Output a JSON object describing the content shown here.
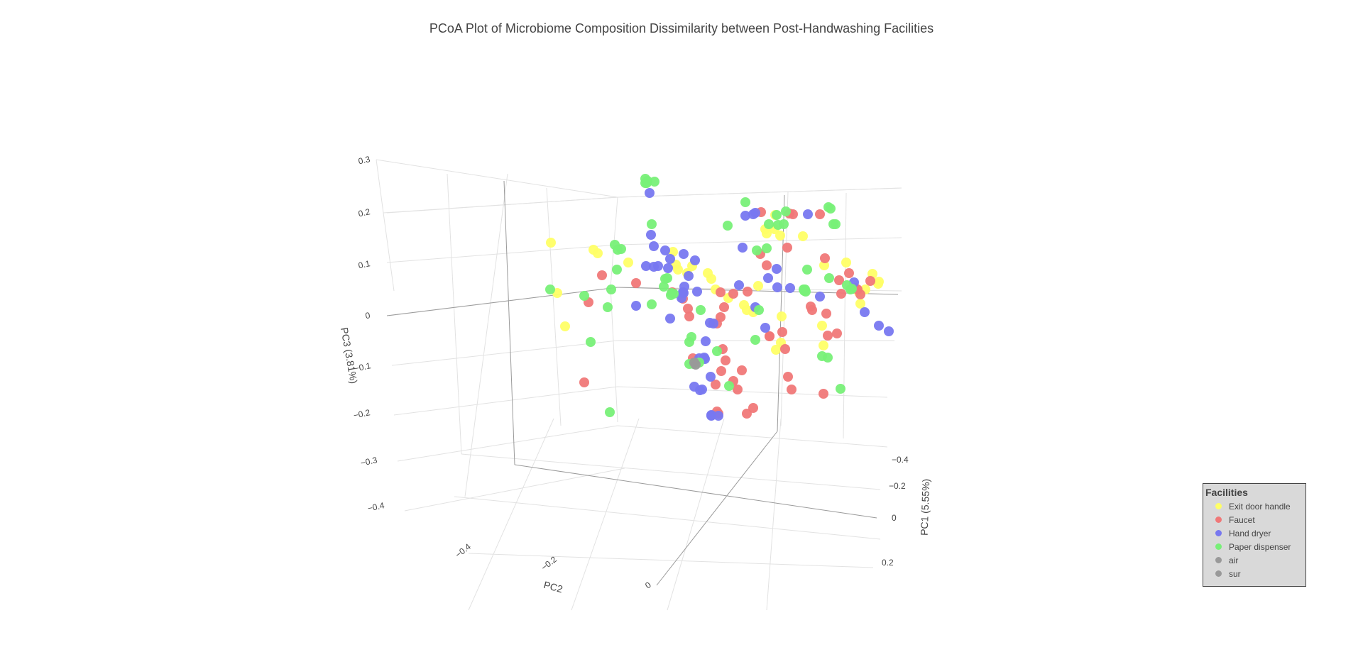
{
  "chart_data": {
    "type": "scatter",
    "title": "PCoA Plot of Microbiome Composition Dissimilarity between Post-Handwashing Facilities",
    "axes": {
      "x": {
        "label": "PC1 (5.55%)",
        "ticks": [
          "−0.4",
          "−0.2",
          "0",
          "0.2"
        ]
      },
      "y": {
        "label": "PC2",
        "ticks": [
          "−0.4",
          "−0.2",
          "0"
        ]
      },
      "z": {
        "label": "PC3 (3.81%)",
        "ticks": [
          "0.3",
          "0.2",
          "0.1",
          "0",
          "−0.1",
          "−0.2",
          "−0.3",
          "−0.4"
        ]
      }
    },
    "grid": true,
    "legend": {
      "title": "Facilities",
      "placement": "bottom-right",
      "entries": [
        {
          "name": "Exit door handle",
          "color": "#ffff66"
        },
        {
          "name": "Faucet",
          "color": "#f07878"
        },
        {
          "name": "Hand dryer",
          "color": "#7878f0"
        },
        {
          "name": "Paper dispenser",
          "color": "#78f078"
        },
        {
          "name": "air",
          "color": "#999999"
        },
        {
          "name": "sur",
          "color": "#999999"
        }
      ]
    },
    "series": [
      {
        "name": "Exit door handle",
        "color": "#ffff66",
        "screen_points": [
          [
            776,
            342
          ],
          [
            785,
            413
          ],
          [
            796,
            460
          ],
          [
            836,
            352
          ],
          [
            842,
            357
          ],
          [
            885,
            370
          ],
          [
            948,
            355
          ],
          [
            952,
            373
          ],
          [
            975,
            375
          ],
          [
            955,
            380
          ],
          [
            968,
            385
          ],
          [
            997,
            385
          ],
          [
            1002,
            393
          ],
          [
            1008,
            408
          ],
          [
            1026,
            420
          ],
          [
            1048,
            430
          ],
          [
            1068,
            403
          ],
          [
            1078,
            323
          ],
          [
            1080,
            329
          ],
          [
            1092,
            303
          ],
          [
            1099,
            332
          ],
          [
            1158,
            459
          ],
          [
            1160,
            487
          ],
          [
            1192,
            370
          ],
          [
            1219,
            408
          ],
          [
            1238,
            397
          ],
          [
            1237,
            400
          ],
          [
            1212,
            428
          ],
          [
            1061,
            440
          ],
          [
            1100,
            483
          ],
          [
            1210,
            412
          ],
          [
            1093,
            493
          ],
          [
            1101,
            446
          ],
          [
            1091,
            323
          ],
          [
            1052,
            437
          ],
          [
            1229,
            386
          ],
          [
            1161,
            374
          ],
          [
            1131,
            333
          ]
        ]
      },
      {
        "name": "Faucet",
        "color": "#f07878",
        "screen_points": [
          [
            1071,
            358
          ],
          [
            1072,
            299
          ],
          [
            1112,
            301
          ],
          [
            1117,
            302
          ],
          [
            1109,
            349
          ],
          [
            1155,
            302
          ],
          [
            1162,
            364
          ],
          [
            1142,
            432
          ],
          [
            1144,
            437
          ],
          [
            1164,
            442
          ],
          [
            1182,
            395
          ],
          [
            1185,
            414
          ],
          [
            1205,
            406
          ],
          [
            1208,
            408
          ],
          [
            1166,
            473
          ],
          [
            1179,
            470
          ],
          [
            1196,
            385
          ],
          [
            1226,
            396
          ],
          [
            1212,
            415
          ],
          [
            1084,
            474
          ],
          [
            1102,
            468
          ],
          [
            1106,
            492
          ],
          [
            1110,
            531
          ],
          [
            1115,
            549
          ],
          [
            1084,
            474
          ],
          [
            1080,
            374
          ],
          [
            1053,
            411
          ],
          [
            1033,
            414
          ],
          [
            1015,
            412
          ],
          [
            1010,
            456
          ],
          [
            1015,
            447
          ],
          [
            1020,
            433
          ],
          [
            1018,
            492
          ],
          [
            1033,
            537
          ],
          [
            1039,
            549
          ],
          [
            1052,
            583
          ],
          [
            1061,
            575
          ],
          [
            1045,
            522
          ],
          [
            1016,
            523
          ],
          [
            1022,
            508
          ],
          [
            1008,
            542
          ],
          [
            1010,
            580
          ],
          [
            1012,
            583
          ],
          [
            971,
            446
          ],
          [
            969,
            435
          ],
          [
            962,
            421
          ],
          [
            976,
            505
          ],
          [
            947,
            412
          ],
          [
            848,
            388
          ],
          [
            829,
            426
          ],
          [
            823,
            539
          ],
          [
            896,
            399
          ],
          [
            1160,
            555
          ]
        ]
      },
      {
        "name": "Hand dryer",
        "color": "#7878f0",
        "screen_points": [
          [
            915,
            272
          ],
          [
            917,
            331
          ],
          [
            921,
            347
          ],
          [
            937,
            353
          ],
          [
            941,
            378
          ],
          [
            944,
            365
          ],
          [
            963,
            358
          ],
          [
            970,
            389
          ],
          [
            964,
            404
          ],
          [
            962,
            412
          ],
          [
            960,
            420
          ],
          [
            963,
            413
          ],
          [
            979,
            367
          ],
          [
            982,
            411
          ],
          [
            992,
            504
          ],
          [
            985,
            505
          ],
          [
            1001,
            531
          ],
          [
            994,
            481
          ],
          [
            1000,
            455
          ],
          [
            1005,
            456
          ],
          [
            1078,
            462
          ],
          [
            1064,
            433
          ],
          [
            1041,
            402
          ],
          [
            1046,
            349
          ],
          [
            1050,
            304
          ],
          [
            1061,
            302
          ],
          [
            1064,
            300
          ],
          [
            1082,
            392
          ],
          [
            1094,
            379
          ],
          [
            1095,
            405
          ],
          [
            1113,
            406
          ],
          [
            1138,
            302
          ],
          [
            1155,
            418
          ],
          [
            1203,
            398
          ],
          [
            1218,
            440
          ],
          [
            1238,
            459
          ],
          [
            1252,
            467
          ],
          [
            986,
            550
          ],
          [
            989,
            549
          ],
          [
            1002,
            586
          ],
          [
            1012,
            586
          ],
          [
            1002,
            585
          ],
          [
            993,
            506
          ],
          [
            896,
            431
          ],
          [
            944,
            449
          ],
          [
            978,
            545
          ],
          [
            910,
            375
          ],
          [
            921,
            376
          ],
          [
            927,
            375
          ]
        ]
      },
      {
        "name": "Paper dispenser",
        "color": "#78f078",
        "screen_points": [
          [
            909,
            252
          ],
          [
            909,
            258
          ],
          [
            922,
            256
          ],
          [
            911,
            258
          ],
          [
            912,
            255
          ],
          [
            918,
            316
          ],
          [
            866,
            345
          ],
          [
            875,
            351
          ],
          [
            870,
            352
          ],
          [
            869,
            380
          ],
          [
            861,
            408
          ],
          [
            937,
            393
          ],
          [
            940,
            392
          ],
          [
            935,
            404
          ],
          [
            946,
            413
          ],
          [
            949,
            414
          ],
          [
            945,
            416
          ],
          [
            918,
            429
          ],
          [
            987,
            437
          ],
          [
            974,
            475
          ],
          [
            971,
            482
          ],
          [
            971,
            513
          ],
          [
            977,
            513
          ],
          [
            985,
            511
          ],
          [
            1010,
            495
          ],
          [
            1027,
            544
          ],
          [
            1050,
            285
          ],
          [
            1025,
            318
          ],
          [
            1066,
            353
          ],
          [
            1094,
            303
          ],
          [
            1096,
            317
          ],
          [
            1083,
            316
          ],
          [
            1104,
            316
          ],
          [
            1107,
            298
          ],
          [
            1137,
            380
          ],
          [
            1133,
            410
          ],
          [
            1135,
            411
          ],
          [
            1167,
            292
          ],
          [
            1170,
            294
          ],
          [
            1174,
            316
          ],
          [
            1168,
            392
          ],
          [
            1177,
            316
          ],
          [
            1132,
            408
          ],
          [
            1134,
            408
          ],
          [
            1198,
            408
          ],
          [
            1200,
            407
          ],
          [
            1166,
            504
          ],
          [
            1184,
            548
          ],
          [
            1064,
            479
          ],
          [
            1069,
            437
          ],
          [
            1158,
            502
          ],
          [
            1193,
            402
          ],
          [
            775,
            408
          ],
          [
            823,
            417
          ],
          [
            832,
            482
          ],
          [
            856,
            433
          ],
          [
            859,
            581
          ],
          [
            1080,
            350
          ]
        ]
      },
      {
        "name": "air",
        "color": "#999999",
        "screen_points": [
          [
            978,
            511
          ]
        ]
      },
      {
        "name": "sur",
        "color": "#999999",
        "screen_points": [
          [
            980,
            514
          ]
        ]
      }
    ]
  }
}
